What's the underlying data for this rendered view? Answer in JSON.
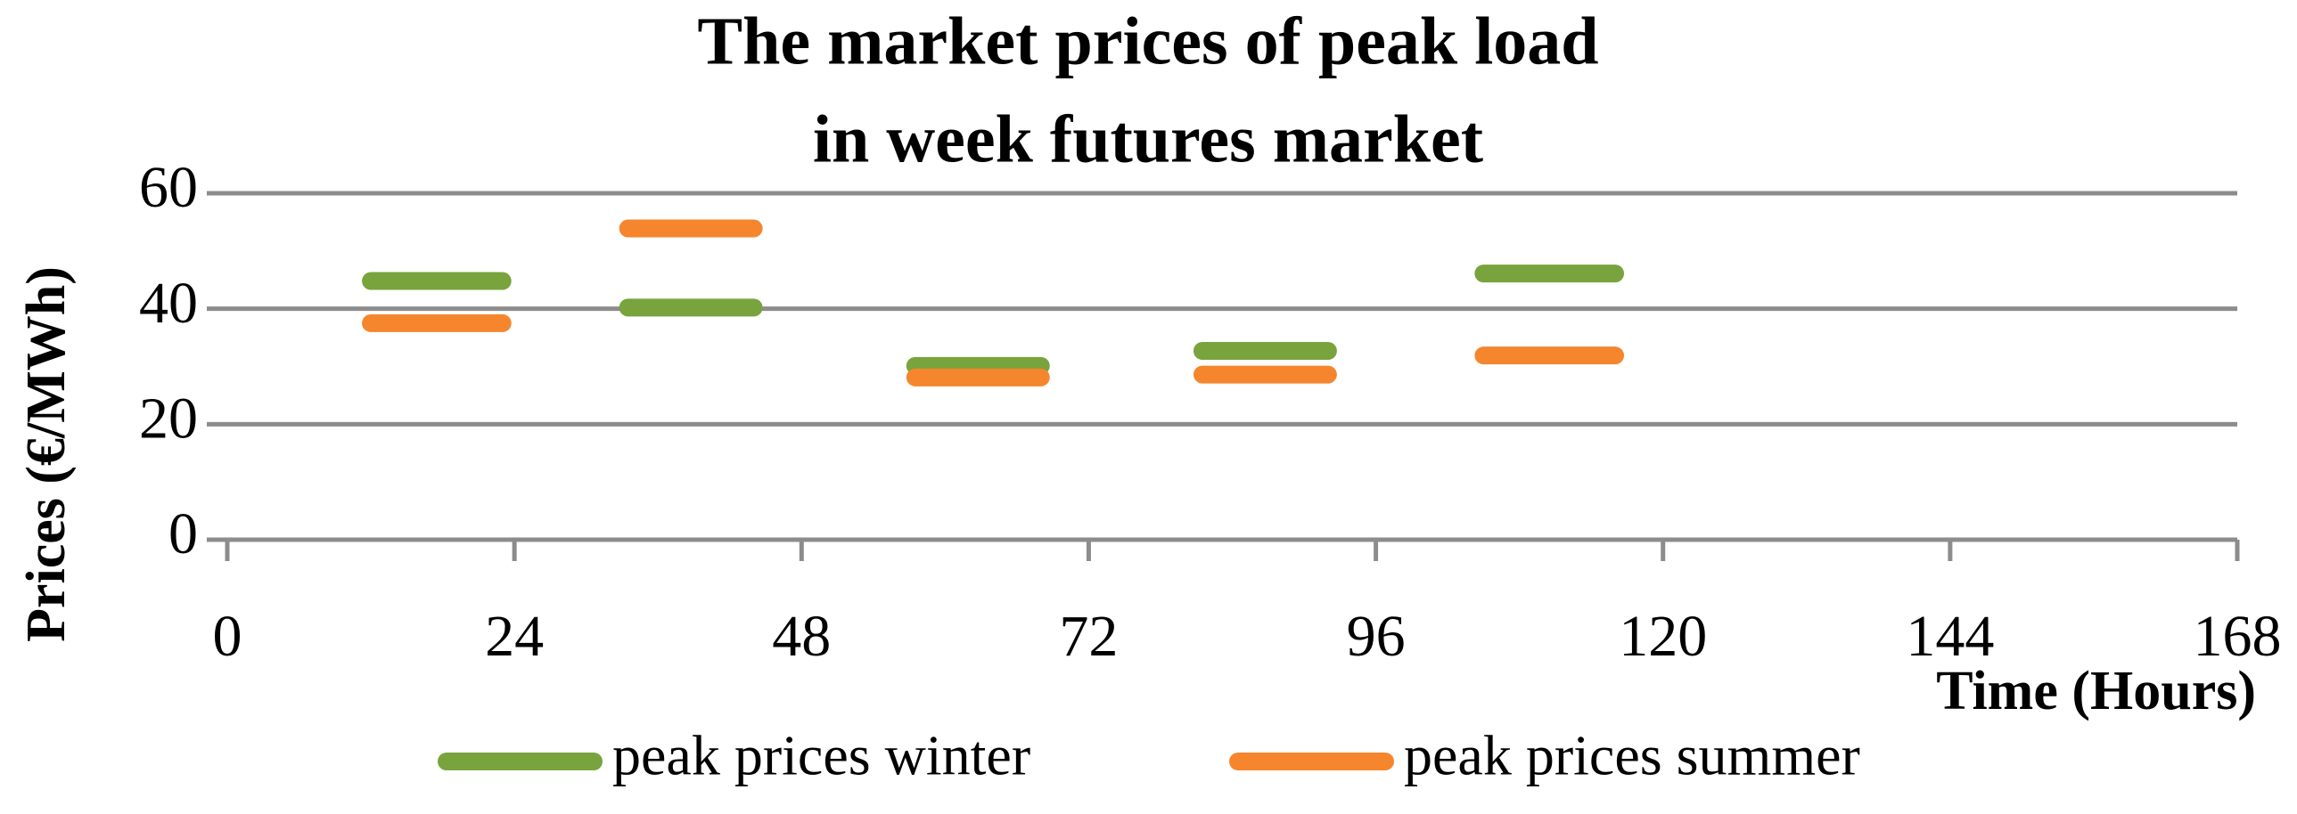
{
  "chart_data": {
    "type": "line",
    "title": [
      "The market prices of peak load",
      "in week futures market"
    ],
    "x_label": "Time (Hours)",
    "y_label": "Prices (€/MWh)",
    "x": [
      12,
      23,
      null,
      33.5,
      44,
      null,
      57.5,
      68,
      null,
      81.5,
      92,
      null,
      105,
      116
    ],
    "series": [
      {
        "name": "peak prices winter",
        "color": "#79a33c",
        "values": [
          44.8,
          44.8,
          null,
          40.2,
          40.2,
          null,
          30.1,
          30.1,
          null,
          32.7,
          32.7,
          null,
          46.1,
          46.1
        ]
      },
      {
        "name": "peak prices summer",
        "color": "#f5862e",
        "values": [
          37.5,
          37.5,
          null,
          53.9,
          53.9,
          null,
          28.1,
          28.1,
          null,
          28.6,
          28.6,
          null,
          31.9,
          31.9
        ]
      }
    ],
    "xlim": [
      0,
      168
    ],
    "xticks": [
      0,
      24,
      48,
      72,
      96,
      120,
      144,
      168
    ],
    "ylim": [
      0,
      60
    ],
    "yticks": [
      0,
      20,
      40,
      60
    ],
    "grid": true,
    "legend": "bottom"
  }
}
